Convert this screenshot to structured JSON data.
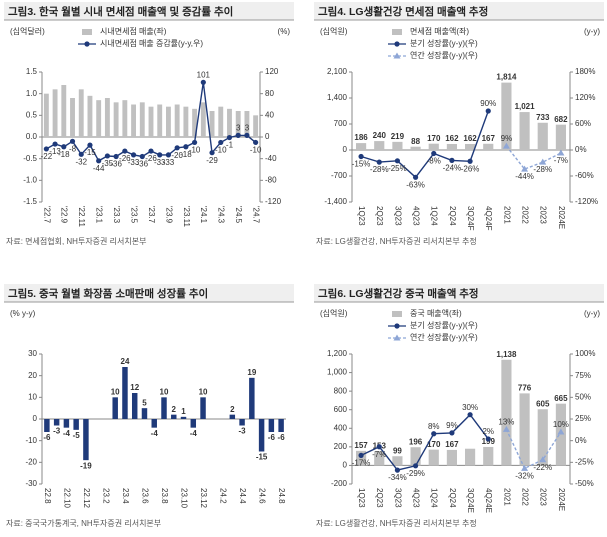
{
  "panels": [
    {
      "title": "그림3. 한국 월별 시내 면세점 매출액 및 증감률 추이",
      "source": "자료: 면세점협회, NH투자증권 리서치본부",
      "chart_data": {
        "type": "combo",
        "y_label": "(십억달러)",
        "y2_label": "(%)",
        "ylim": [
          -1.5,
          1.5
        ],
        "yticks": [
          -1.5,
          {
            "value": -1,
            "label": "-1.0"
          },
          -0.5,
          {
            "value": 0,
            "label": "0.0"
          },
          0.5,
          {
            "value": 1,
            "label": "1.0"
          },
          1.5
        ],
        "y2lim": [
          -120,
          120
        ],
        "y2ticks": [
          -120,
          -80,
          -40,
          0,
          40,
          80,
          120
        ],
        "categories": [
          "'22.7",
          null,
          "'22.9",
          null,
          "'22.11",
          null,
          "'23.1",
          null,
          "'23.3",
          null,
          "'23.5",
          null,
          "'23.7",
          null,
          "'23.9",
          null,
          "'23.11",
          null,
          "'24.1",
          null,
          "'24.3",
          null,
          "'24.5",
          null,
          "'24.7"
        ],
        "series": [
          {
            "name": "시내면세점 매출(좌)",
            "kind": "bar",
            "color": "#c0c0c0",
            "values": [
              1.0,
              1.1,
              1.2,
              0.9,
              1.1,
              0.95,
              0.85,
              0.9,
              0.8,
              0.85,
              0.75,
              0.8,
              0.7,
              0.75,
              0.7,
              0.75,
              0.7,
              0.65,
              0.8,
              0.6,
              0.7,
              0.65,
              0.6,
              0.6,
              0.5
            ]
          },
          {
            "name": "시내면세점 매출 증감률(y-y,우)",
            "kind": "line",
            "axis": "y2",
            "color": "#1f3a7a",
            "marker": "circle",
            "labels": true,
            "values": [
              -22,
              -13,
              -18,
              -8,
              -32,
              -15,
              -44,
              -35,
              -36,
              -26,
              -33,
              -36,
              -26,
              -33,
              -33,
              -20,
              -18,
              -10,
              101,
              -29,
              -10,
              -1,
              3,
              3,
              -10
            ]
          }
        ]
      }
    },
    {
      "title": "그림4. LG생활건강 면세점 매출액 추정",
      "source": "자료: LG생활건강, NH투자증권 리서치본부 추정",
      "chart_data": {
        "type": "combo",
        "y_label": "(십억원)",
        "y2_label": "(y-y)",
        "ylim": [
          -1400,
          2100
        ],
        "yticks": [
          {
            "value": -1400,
            "label": "-1,400"
          },
          -700,
          0,
          700,
          {
            "value": 1400,
            "label": "1,400"
          },
          {
            "value": 2100,
            "label": "2,100"
          }
        ],
        "y2lim": [
          -120,
          180
        ],
        "y2ticks": [
          {
            "value": -120,
            "label": "-120%"
          },
          {
            "value": -60,
            "label": "-60%"
          },
          {
            "value": 0,
            "label": "0%"
          },
          {
            "value": 60,
            "label": "60%"
          },
          {
            "value": 120,
            "label": "120%"
          },
          {
            "value": 180,
            "label": "180%"
          }
        ],
        "categories": [
          "1Q23",
          "2Q23",
          "3Q23",
          "4Q23",
          "1Q24",
          "2Q24",
          "3Q24F",
          "4Q24F",
          "2021",
          "2022",
          "2023",
          "2024E"
        ],
        "series": [
          {
            "name": "면세점 매출액(좌)",
            "kind": "bar",
            "color": "#c0c0c0",
            "labels": true,
            "values": [
              186,
              240,
              219,
              88,
              170,
              162,
              162,
              167,
              1814,
              1021,
              733,
              682
            ],
            "value_labels": [
              "186",
              "240",
              "219",
              "88",
              "170",
              "162",
              "162",
              "167",
              "1,814",
              "1,021",
              "733",
              "682"
            ]
          },
          {
            "name": "분기 성장률(y-y)(우)",
            "kind": "line",
            "axis": "y2",
            "color": "#1f3a7a",
            "marker": "circle",
            "labels": true,
            "values": [
              -15,
              -28,
              -25,
              -63,
              -8,
              -24,
              -26,
              90,
              null,
              null,
              null,
              null
            ],
            "value_labels": [
              "-15%",
              "-28%",
              "-25%",
              "-63%",
              "-8%",
              "-24%",
              "-26%",
              "90%",
              null,
              null,
              null,
              null
            ]
          },
          {
            "name": "연간 성장률(y-y)(우)",
            "kind": "line",
            "axis": "y2",
            "color": "#8ea6d6",
            "marker": "triangle",
            "dash": true,
            "labels": true,
            "values": [
              null,
              null,
              null,
              null,
              null,
              null,
              null,
              null,
              9,
              -44,
              -28,
              -7
            ],
            "value_labels": [
              null,
              null,
              null,
              null,
              null,
              null,
              null,
              null,
              "9%",
              "-44%",
              "-28%",
              "-7%"
            ]
          }
        ]
      }
    },
    {
      "title": "그림5. 중국 월별 화장품 소매판매 성장률 추이",
      "source": "자료: 중국국가통계국, NH투자증권 리서치본부",
      "chart_data": {
        "type": "combo",
        "y_label": "(% y-y)",
        "ylim": [
          -30,
          30
        ],
        "yticks": [
          -30,
          -20,
          -10,
          0,
          10,
          20,
          30
        ],
        "categories": [
          "22.8",
          null,
          "22.10",
          null,
          "22.12",
          null,
          "23.2",
          null,
          "23.4",
          null,
          "23.6",
          null,
          "23.8",
          null,
          "23.10",
          null,
          "23.12",
          null,
          "24.2",
          null,
          "24.4",
          null,
          "24.6",
          null,
          "24.8"
        ],
        "series": [
          {
            "kind": "bar",
            "color": "#1f3a7a",
            "labels": true,
            "values": [
              -6,
              -3,
              -4,
              -5,
              -19,
              null,
              null,
              10,
              24,
              12,
              5,
              -4,
              10,
              2,
              1,
              -4,
              10,
              null,
              null,
              2,
              -3,
              19,
              -15,
              -6,
              -6
            ]
          }
        ]
      }
    },
    {
      "title": "그림6. LG생활건강 중국 매출액 추정",
      "source": "자료: LG생활건강, NH투자증권 리서치본부 추정",
      "chart_data": {
        "type": "combo",
        "y_label": "(십억원)",
        "y2_label": "(y-y)",
        "ylim": [
          -200,
          1200
        ],
        "yticks": [
          -200,
          0,
          200,
          400,
          600,
          800,
          {
            "value": 1000,
            "label": "1,000"
          },
          {
            "value": 1200,
            "label": "1,200"
          }
        ],
        "y2lim": [
          -50,
          100
        ],
        "y2ticks": [
          {
            "value": -50,
            "label": "-50%"
          },
          {
            "value": -25,
            "label": "-25%"
          },
          {
            "value": 0,
            "label": "0%"
          },
          {
            "value": 25,
            "label": "25%"
          },
          {
            "value": 50,
            "label": "50%"
          },
          {
            "value": 75,
            "label": "75%"
          },
          {
            "value": 100,
            "label": "100%"
          }
        ],
        "categories": [
          "1Q23",
          "2Q23",
          "3Q23",
          "4Q23",
          "1Q24",
          "2Q24",
          "3Q24E",
          "4Q24E",
          "2021",
          "2022",
          "2023",
          "2024E"
        ],
        "series": [
          {
            "name": "중국 매출액(좌)",
            "kind": "bar",
            "color": "#c0c0c0",
            "labels": true,
            "values": [
              157,
              153,
              99,
              196,
              170,
              167,
              180,
              199,
              1138,
              776,
              605,
              665
            ],
            "value_labels": [
              "157",
              "153",
              "99",
              "196",
              "170",
              "167",
              null,
              "199",
              "1,138",
              "776",
              "605",
              "665"
            ]
          },
          {
            "name": "분기 성장률(y-y)(우)",
            "kind": "line",
            "axis": "y2",
            "color": "#1f3a7a",
            "marker": "circle",
            "labels": true,
            "values": [
              -17,
              -7,
              -34,
              -29,
              8,
              9,
              30,
              2,
              null,
              null,
              null,
              null
            ],
            "value_labels": [
              "-17%",
              "-7%",
              "-34%",
              "-29%",
              "8%",
              "9%",
              "30%",
              "2%",
              null,
              null,
              null,
              null
            ]
          },
          {
            "name": "연간 성장률(y-y)(우)",
            "kind": "line",
            "axis": "y2",
            "color": "#8ea6d6",
            "marker": "triangle",
            "dash": true,
            "labels": true,
            "values": [
              null,
              null,
              null,
              null,
              null,
              null,
              null,
              null,
              13,
              -32,
              -22,
              10
            ],
            "value_labels": [
              null,
              null,
              null,
              null,
              null,
              null,
              null,
              null,
              "13%",
              "-32%",
              "-22%",
              "10%"
            ]
          }
        ]
      }
    }
  ]
}
